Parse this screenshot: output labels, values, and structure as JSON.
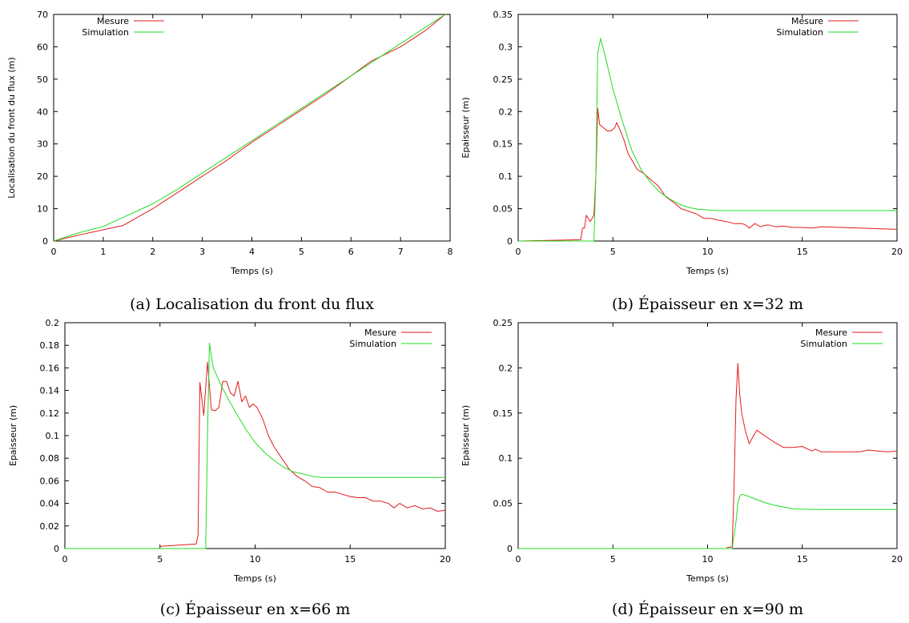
{
  "chart_data": [
    {
      "type": "line",
      "caption": "(a) Localisation du front du flux",
      "xlabel": "Temps (s)",
      "ylabel": "Localisation du front du flux (m)",
      "xlim": [
        0,
        8
      ],
      "ylim": [
        0,
        70
      ],
      "xticks": [
        "0",
        "1",
        "2",
        "3",
        "4",
        "5",
        "6",
        "7",
        "8"
      ],
      "yticks": [
        "0",
        "10",
        "20",
        "30",
        "40",
        "50",
        "60",
        "70"
      ],
      "legend": "top-left",
      "series": [
        {
          "name": "Mesure",
          "color": "#e41a1c",
          "x": [
            0,
            0.5,
            1,
            1.4,
            2,
            2.5,
            3,
            3.5,
            4,
            4.5,
            5,
            5.5,
            6,
            6.4,
            7,
            7.5,
            7.9
          ],
          "y": [
            0,
            1.8,
            3.5,
            4.8,
            10,
            15,
            20,
            25,
            30.5,
            35.5,
            40.5,
            45.5,
            51,
            55.5,
            60,
            65,
            70
          ]
        },
        {
          "name": "Simulation",
          "color": "#22dd22",
          "x": [
            0,
            0.5,
            1,
            1.5,
            2,
            2.5,
            3,
            3.5,
            4,
            4.5,
            5,
            5.5,
            6,
            6.5,
            7,
            7.5,
            7.9
          ],
          "y": [
            0,
            2.5,
            4.5,
            8,
            11.5,
            16,
            21,
            26,
            31,
            36,
            41,
            46,
            51,
            56,
            61,
            66,
            70
          ]
        }
      ]
    },
    {
      "type": "line",
      "caption": "(b) Épaisseur en x=32 m",
      "xlabel": "Temps (s)",
      "ylabel": "Epaisseur (m)",
      "xlim": [
        0,
        20
      ],
      "ylim": [
        0,
        0.35
      ],
      "xticks": [
        "0",
        "5",
        "10",
        "15",
        "20"
      ],
      "yticks": [
        "0",
        "0.05",
        "0.1",
        "0.15",
        "0.2",
        "0.25",
        "0.3",
        "0.35"
      ],
      "legend": "top-right",
      "series": [
        {
          "name": "Mesure",
          "color": "#e41a1c",
          "x": [
            0,
            3.3,
            3.4,
            3.5,
            3.6,
            3.7,
            3.8,
            4.0,
            4.1,
            4.2,
            4.3,
            4.5,
            4.7,
            4.9,
            5.1,
            5.2,
            5.4,
            5.6,
            5.8,
            6.0,
            6.3,
            6.6,
            7.0,
            7.4,
            7.8,
            8.2,
            8.6,
            9.0,
            9.4,
            9.8,
            10.2,
            10.6,
            11.0,
            11.4,
            11.8,
            12.0,
            12.2,
            12.5,
            12.8,
            13.0,
            13.2,
            13.6,
            14.0,
            14.5,
            15.0,
            15.5,
            16.0,
            17.0,
            18.0,
            19.0,
            20.0
          ],
          "y": [
            0,
            0.002,
            0.02,
            0.02,
            0.04,
            0.035,
            0.03,
            0.04,
            0.1,
            0.205,
            0.18,
            0.175,
            0.17,
            0.17,
            0.175,
            0.183,
            0.17,
            0.155,
            0.135,
            0.125,
            0.11,
            0.105,
            0.095,
            0.085,
            0.068,
            0.06,
            0.05,
            0.046,
            0.042,
            0.035,
            0.035,
            0.032,
            0.03,
            0.027,
            0.027,
            0.025,
            0.02,
            0.027,
            0.022,
            0.024,
            0.025,
            0.022,
            0.023,
            0.021,
            0.021,
            0.02,
            0.022,
            0.021,
            0.02,
            0.019,
            0.018
          ]
        },
        {
          "name": "Simulation",
          "color": "#22dd22",
          "x": [
            0,
            4.0,
            4.1,
            4.2,
            4.35,
            4.6,
            5.0,
            5.5,
            6.0,
            6.5,
            7.0,
            7.5,
            8.0,
            8.5,
            9.0,
            9.5,
            10.0,
            10.5,
            11,
            20
          ],
          "y": [
            0,
            0,
            0.1,
            0.29,
            0.313,
            0.285,
            0.235,
            0.185,
            0.14,
            0.11,
            0.09,
            0.075,
            0.065,
            0.057,
            0.052,
            0.049,
            0.048,
            0.047,
            0.047,
            0.047
          ]
        }
      ]
    },
    {
      "type": "line",
      "caption": "(c) Épaisseur en x=66 m",
      "xlabel": "Temps (s)",
      "ylabel": "Epaisseur (m)",
      "xlim": [
        0,
        20
      ],
      "ylim": [
        0,
        0.2
      ],
      "xticks": [
        "0",
        "5",
        "10",
        "15",
        "20"
      ],
      "yticks": [
        "0",
        "0.02",
        "0.04",
        "0.06",
        "0.08",
        "0.1",
        "0.12",
        "0.14",
        "0.16",
        "0.18",
        "0.2"
      ],
      "legend": "top-right",
      "series": [
        {
          "name": "Mesure",
          "color": "#e41a1c",
          "x": [
            5.0,
            6.0,
            6.9,
            7.0,
            7.1,
            7.3,
            7.5,
            7.7,
            7.9,
            8.1,
            8.3,
            8.5,
            8.7,
            8.9,
            9.1,
            9.3,
            9.5,
            9.7,
            9.9,
            10.1,
            10.4,
            10.7,
            11.0,
            11.4,
            11.8,
            12.2,
            12.6,
            13.0,
            13.4,
            13.8,
            14.2,
            14.6,
            15.0,
            15.4,
            15.8,
            16.2,
            16.6,
            17.0,
            17.3,
            17.6,
            18.0,
            18.4,
            18.8,
            19.2,
            19.6,
            20.0
          ],
          "y": [
            0.002,
            0.003,
            0.004,
            0.012,
            0.147,
            0.118,
            0.165,
            0.123,
            0.122,
            0.125,
            0.148,
            0.148,
            0.138,
            0.135,
            0.148,
            0.13,
            0.135,
            0.125,
            0.128,
            0.125,
            0.115,
            0.1,
            0.09,
            0.08,
            0.07,
            0.064,
            0.06,
            0.055,
            0.054,
            0.05,
            0.05,
            0.048,
            0.046,
            0.045,
            0.045,
            0.042,
            0.042,
            0.04,
            0.036,
            0.04,
            0.036,
            0.038,
            0.035,
            0.036,
            0.033,
            0.034
          ]
        },
        {
          "name": "Simulation",
          "color": "#22dd22",
          "x": [
            0,
            7.4,
            7.5,
            7.6,
            7.8,
            8.2,
            8.6,
            9.0,
            9.5,
            10,
            10.5,
            11,
            11.5,
            12,
            12.5,
            13,
            13.5,
            14,
            20
          ],
          "y": [
            0,
            0,
            0.1,
            0.182,
            0.16,
            0.145,
            0.132,
            0.12,
            0.106,
            0.094,
            0.085,
            0.078,
            0.072,
            0.068,
            0.066,
            0.064,
            0.063,
            0.063,
            0.063
          ]
        }
      ]
    },
    {
      "type": "line",
      "caption": "(d) Épaisseur en x=90 m",
      "xlabel": "Temps (s)",
      "ylabel": "Epaisseur (m)",
      "xlim": [
        0,
        20
      ],
      "ylim": [
        0,
        0.25
      ],
      "xticks": [
        "0",
        "5",
        "10",
        "15",
        "20"
      ],
      "yticks": [
        "0",
        "0.05",
        "0.1",
        "0.15",
        "0.2",
        "0.25"
      ],
      "legend": "top-right",
      "series": [
        {
          "name": "Mesure",
          "color": "#e41a1c",
          "x": [
            11.0,
            11.3,
            11.4,
            11.5,
            11.6,
            11.7,
            11.8,
            12.0,
            12.2,
            12.4,
            12.6,
            13.0,
            13.5,
            14.0,
            14.5,
            15.0,
            15.3,
            15.5,
            15.7,
            16.0,
            17.0,
            18.0,
            18.5,
            19.0,
            19.5,
            20.0
          ],
          "y": [
            0.001,
            0.002,
            0.07,
            0.165,
            0.205,
            0.17,
            0.15,
            0.13,
            0.116,
            0.124,
            0.131,
            0.125,
            0.118,
            0.112,
            0.112,
            0.113,
            0.11,
            0.108,
            0.11,
            0.107,
            0.107,
            0.107,
            0.109,
            0.108,
            0.107,
            0.108
          ]
        },
        {
          "name": "Simulation",
          "color": "#22dd22",
          "x": [
            0,
            11.3,
            11.5,
            11.6,
            11.7,
            11.8,
            12.0,
            12.5,
            13,
            13.5,
            14,
            14.5,
            15,
            16,
            20
          ],
          "y": [
            0,
            0,
            0.03,
            0.05,
            0.058,
            0.06,
            0.059,
            0.055,
            0.051,
            0.048,
            0.046,
            0.044,
            0.0435,
            0.0432,
            0.0432
          ]
        }
      ]
    }
  ]
}
